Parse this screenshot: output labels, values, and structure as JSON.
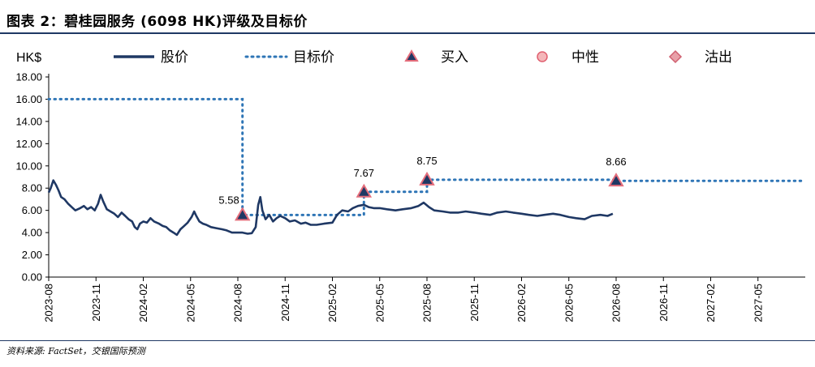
{
  "title": "图表 2：碧桂园服务 (6098 HK)评级及目标价",
  "source": "资料来源: FactSet，交银国际预测",
  "colors": {
    "price_line": "#1f3864",
    "target_line": "#2e75b6",
    "buy_marker_fill": "#1f3864",
    "buy_marker_stroke": "#e46c7a",
    "hold_marker": "#f4b6b9",
    "sell_marker": "#e8a0a8",
    "title_rule": "#1f3864"
  },
  "chart_data": {
    "type": "line",
    "unit_label": "HK$",
    "ylim": [
      0,
      18
    ],
    "y_ticks": [
      "0.00",
      "2.00",
      "4.00",
      "6.00",
      "8.00",
      "10.00",
      "12.00",
      "14.00",
      "16.00",
      "18.00"
    ],
    "x_ticks": [
      "2023-08",
      "2023-11",
      "2024-02",
      "2024-05",
      "2024-08",
      "2024-11",
      "2025-02",
      "2025-05",
      "2025-08",
      "2025-11",
      "2026-02",
      "2026-05",
      "2026-08",
      "2026-11",
      "2027-02",
      "2027-05"
    ],
    "xlim": [
      "2023-08",
      "2027-08"
    ],
    "legend": [
      {
        "label": "股价",
        "type": "solid-line",
        "icon": "solid-line-swatch"
      },
      {
        "label": "目标价",
        "type": "dotted-line",
        "icon": "dotted-line-swatch"
      },
      {
        "label": "买入",
        "type": "triangle",
        "icon": "buy-triangle-icon"
      },
      {
        "label": "中性",
        "type": "circle",
        "icon": "hold-circle-icon"
      },
      {
        "label": "沽出",
        "type": "diamond",
        "icon": "sell-diamond-icon"
      }
    ],
    "price_series": {
      "name": "股价",
      "points": [
        [
          "2023-08-01",
          7.6
        ],
        [
          "2023-08-05",
          8.0
        ],
        [
          "2023-08-10",
          8.7
        ],
        [
          "2023-08-15",
          8.3
        ],
        [
          "2023-08-20",
          7.8
        ],
        [
          "2023-08-25",
          7.2
        ],
        [
          "2023-09-01",
          7.0
        ],
        [
          "2023-09-08",
          6.6
        ],
        [
          "2023-09-15",
          6.3
        ],
        [
          "2023-09-22",
          6.0
        ],
        [
          "2023-10-01",
          6.2
        ],
        [
          "2023-10-08",
          6.4
        ],
        [
          "2023-10-15",
          6.1
        ],
        [
          "2023-10-22",
          6.3
        ],
        [
          "2023-10-29",
          6.0
        ],
        [
          "2023-11-05",
          6.6
        ],
        [
          "2023-11-10",
          7.4
        ],
        [
          "2023-11-15",
          6.8
        ],
        [
          "2023-11-22",
          6.1
        ],
        [
          "2023-11-29",
          5.9
        ],
        [
          "2023-12-06",
          5.7
        ],
        [
          "2023-12-13",
          5.4
        ],
        [
          "2023-12-20",
          5.8
        ],
        [
          "2023-12-27",
          5.5
        ],
        [
          "2024-01-03",
          5.2
        ],
        [
          "2024-01-10",
          5.0
        ],
        [
          "2024-01-15",
          4.5
        ],
        [
          "2024-01-20",
          4.3
        ],
        [
          "2024-01-25",
          4.8
        ],
        [
          "2024-02-01",
          5.0
        ],
        [
          "2024-02-08",
          4.9
        ],
        [
          "2024-02-15",
          5.3
        ],
        [
          "2024-02-22",
          5.0
        ],
        [
          "2024-03-01",
          4.8
        ],
        [
          "2024-03-08",
          4.6
        ],
        [
          "2024-03-15",
          4.5
        ],
        [
          "2024-03-22",
          4.2
        ],
        [
          "2024-03-29",
          4.0
        ],
        [
          "2024-04-05",
          3.8
        ],
        [
          "2024-04-12",
          4.3
        ],
        [
          "2024-04-19",
          4.6
        ],
        [
          "2024-04-26",
          4.9
        ],
        [
          "2024-05-03",
          5.4
        ],
        [
          "2024-05-08",
          5.9
        ],
        [
          "2024-05-12",
          5.5
        ],
        [
          "2024-05-18",
          5.0
        ],
        [
          "2024-05-25",
          4.8
        ],
        [
          "2024-06-01",
          4.7
        ],
        [
          "2024-06-10",
          4.5
        ],
        [
          "2024-06-20",
          4.4
        ],
        [
          "2024-07-01",
          4.3
        ],
        [
          "2024-07-10",
          4.2
        ],
        [
          "2024-07-20",
          4.0
        ],
        [
          "2024-08-01",
          4.0
        ],
        [
          "2024-08-10",
          4.0
        ],
        [
          "2024-08-20",
          3.9
        ],
        [
          "2024-08-28",
          3.95
        ],
        [
          "2024-09-05",
          4.5
        ],
        [
          "2024-09-10",
          6.5
        ],
        [
          "2024-09-14",
          7.2
        ],
        [
          "2024-09-18",
          6.0
        ],
        [
          "2024-09-24",
          5.2
        ],
        [
          "2024-10-01",
          5.6
        ],
        [
          "2024-10-08",
          5.0
        ],
        [
          "2024-10-15",
          5.3
        ],
        [
          "2024-10-22",
          5.5
        ],
        [
          "2024-11-01",
          5.3
        ],
        [
          "2024-11-10",
          5.0
        ],
        [
          "2024-11-20",
          5.1
        ],
        [
          "2024-12-01",
          4.8
        ],
        [
          "2024-12-10",
          4.9
        ],
        [
          "2024-12-20",
          4.7
        ],
        [
          "2025-01-01",
          4.7
        ],
        [
          "2025-01-15",
          4.8
        ],
        [
          "2025-02-01",
          4.9
        ],
        [
          "2025-02-10",
          5.6
        ],
        [
          "2025-02-20",
          6.0
        ],
        [
          "2025-03-01",
          5.9
        ],
        [
          "2025-03-10",
          6.2
        ],
        [
          "2025-03-20",
          6.4
        ],
        [
          "2025-04-01",
          6.5
        ],
        [
          "2025-04-10",
          6.3
        ],
        [
          "2025-04-20",
          6.2
        ],
        [
          "2025-05-01",
          6.2
        ],
        [
          "2025-05-15",
          6.1
        ],
        [
          "2025-06-01",
          6.0
        ],
        [
          "2025-06-15",
          6.1
        ],
        [
          "2025-07-01",
          6.2
        ],
        [
          "2025-07-15",
          6.4
        ],
        [
          "2025-07-25",
          6.7
        ],
        [
          "2025-08-05",
          6.3
        ],
        [
          "2025-08-15",
          6.0
        ],
        [
          "2025-09-01",
          5.9
        ],
        [
          "2025-09-15",
          5.8
        ],
        [
          "2025-10-01",
          5.8
        ],
        [
          "2025-10-15",
          5.9
        ],
        [
          "2025-11-01",
          5.8
        ],
        [
          "2025-11-15",
          5.7
        ],
        [
          "2025-12-01",
          5.6
        ],
        [
          "2025-12-15",
          5.8
        ],
        [
          "2026-01-01",
          5.9
        ],
        [
          "2026-01-15",
          5.8
        ],
        [
          "2026-02-01",
          5.7
        ],
        [
          "2026-02-15",
          5.6
        ],
        [
          "2026-03-01",
          5.5
        ],
        [
          "2026-03-15",
          5.6
        ],
        [
          "2026-04-01",
          5.7
        ],
        [
          "2026-04-15",
          5.6
        ],
        [
          "2026-05-01",
          5.4
        ],
        [
          "2026-05-15",
          5.3
        ],
        [
          "2026-06-01",
          5.2
        ],
        [
          "2026-06-15",
          5.5
        ],
        [
          "2026-07-01",
          5.6
        ],
        [
          "2026-07-15",
          5.5
        ],
        [
          "2026-07-25",
          5.7
        ]
      ]
    },
    "target_series": {
      "name": "目标价",
      "points": [
        [
          "2023-08-01",
          16.0
        ],
        [
          "2024-08-10",
          16.0
        ],
        [
          "2024-08-10",
          5.58
        ],
        [
          "2025-04-01",
          5.58
        ],
        [
          "2025-04-01",
          7.67
        ],
        [
          "2025-08-01",
          7.67
        ],
        [
          "2025-08-01",
          8.75
        ],
        [
          "2026-08-01",
          8.75
        ],
        [
          "2026-08-01",
          8.66
        ],
        [
          "2027-08-01",
          8.66
        ]
      ]
    },
    "buy_ratings": [
      {
        "date": "2024-08-10",
        "target": 5.58,
        "label": "5.58",
        "label_side": "left"
      },
      {
        "date": "2025-04-01",
        "target": 7.67,
        "label": "7.67",
        "label_side": "above"
      },
      {
        "date": "2025-08-01",
        "target": 8.75,
        "label": "8.75",
        "label_side": "above"
      },
      {
        "date": "2026-08-01",
        "target": 8.66,
        "label": "8.66",
        "label_side": "above"
      }
    ]
  }
}
